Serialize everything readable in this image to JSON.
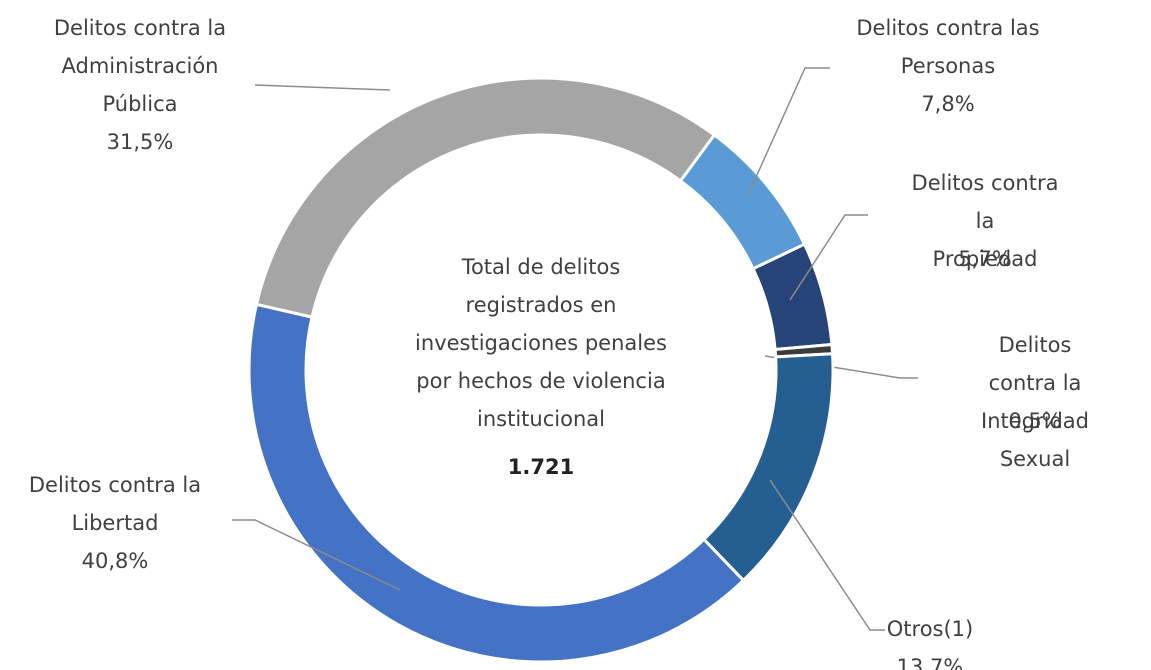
{
  "chart_data": {
    "type": "donut",
    "categories": [
      "Delitos contra las\nPersonas",
      "Delitos contra la\nPropiedad",
      "Delitos contra la\nIntegridad Sexual",
      "Otros(1)",
      "Delitos contra la\nLibertad",
      "Delitos contra la\nAdministración\nPública"
    ],
    "values": [
      7.8,
      5.7,
      0.5,
      13.7,
      40.8,
      31.5
    ],
    "value_labels": [
      "7,8%",
      "5,7%",
      "0,5%",
      "13,7%",
      "40,8%",
      "31,5%"
    ],
    "colors": [
      "#5b9bd5",
      "#264478",
      "#3b3b3b",
      "#255e91",
      "#4472c4",
      "#a5a5a5"
    ],
    "center_text": "Total de delitos\nregistrados en\ninvestigaciones penales\npor hechos de violencia\ninstitucional",
    "total": {
      "value": 1721,
      "label": "1.721"
    }
  }
}
